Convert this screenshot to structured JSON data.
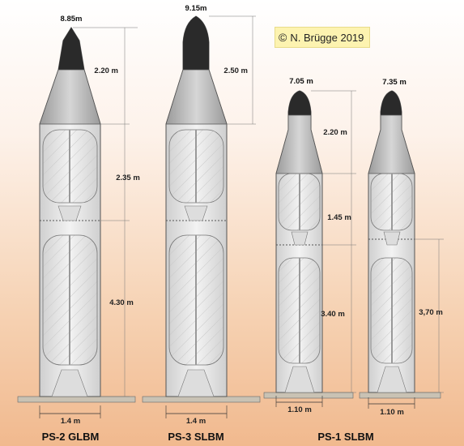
{
  "copyright": {
    "symbol": "©",
    "text": "N. Brügge 2019"
  },
  "missiles": [
    {
      "name": "PS-2 GLBM",
      "tip_diameter": "8.85m",
      "nose_length": "2.20 m",
      "stage2_length": "2.35 m",
      "stage1_length": "4.30 m",
      "base_diameter": "1.4 m"
    },
    {
      "name": "PS-3 SLBM",
      "tip_diameter": "9.15m",
      "nose_length": "2.50 m",
      "base_diameter": "1.4 m"
    },
    {
      "name": "PS-1 SLBM",
      "tip_diameter": "7.05 m",
      "nose_length": "2.20 m",
      "stage2_length": "1.45 m",
      "stage1_length": "3.40 m",
      "base_diameter": "1.10 m"
    },
    {
      "tip_diameter": "7.35 m",
      "stage1_length": "3,70 m",
      "base_diameter": "1.10 m"
    }
  ],
  "colors": {
    "body": "#e6e6e6",
    "nose": "#2a2a2a",
    "tank": "#f4f4f4",
    "ground": "#c9c2b4"
  }
}
